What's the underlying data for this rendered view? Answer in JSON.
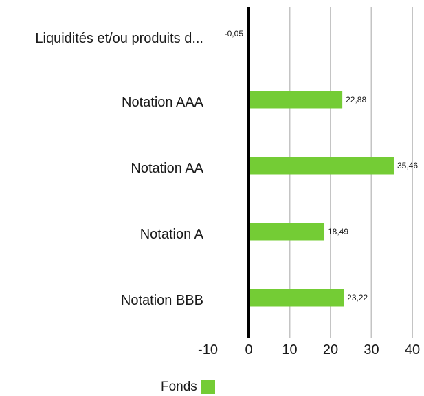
{
  "chart_data": {
    "type": "bar",
    "orientation": "horizontal",
    "categories": [
      "Liquidités et/ou produits d...",
      "Notation AAA",
      "Notation AA",
      "Notation A",
      "Notation BBB"
    ],
    "series": [
      {
        "name": "Fonds",
        "color": "#74cc35",
        "values": [
          -0.05,
          22.88,
          35.46,
          18.49,
          23.22
        ],
        "value_labels": [
          "-0,05",
          "22,88",
          "35,46",
          "18,49",
          "23,22"
        ]
      }
    ],
    "xlim": [
      -10,
      40
    ],
    "x_ticks": [
      -10,
      0,
      10,
      20,
      30,
      40
    ],
    "x_tick_labels": [
      "-10",
      "0",
      "10",
      "20",
      "30",
      "40"
    ],
    "grid": true,
    "legend_position": "bottom"
  }
}
